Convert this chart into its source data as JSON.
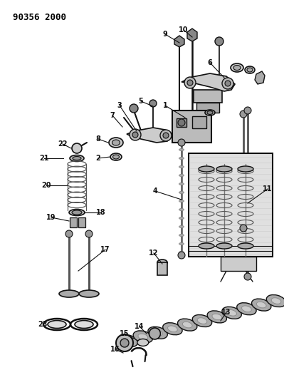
{
  "title": "90356 2000",
  "bg_color": "#ffffff",
  "fg_color": "#000000",
  "lc": "#111111",
  "figw": 3.99,
  "figh": 5.33,
  "dpi": 100
}
